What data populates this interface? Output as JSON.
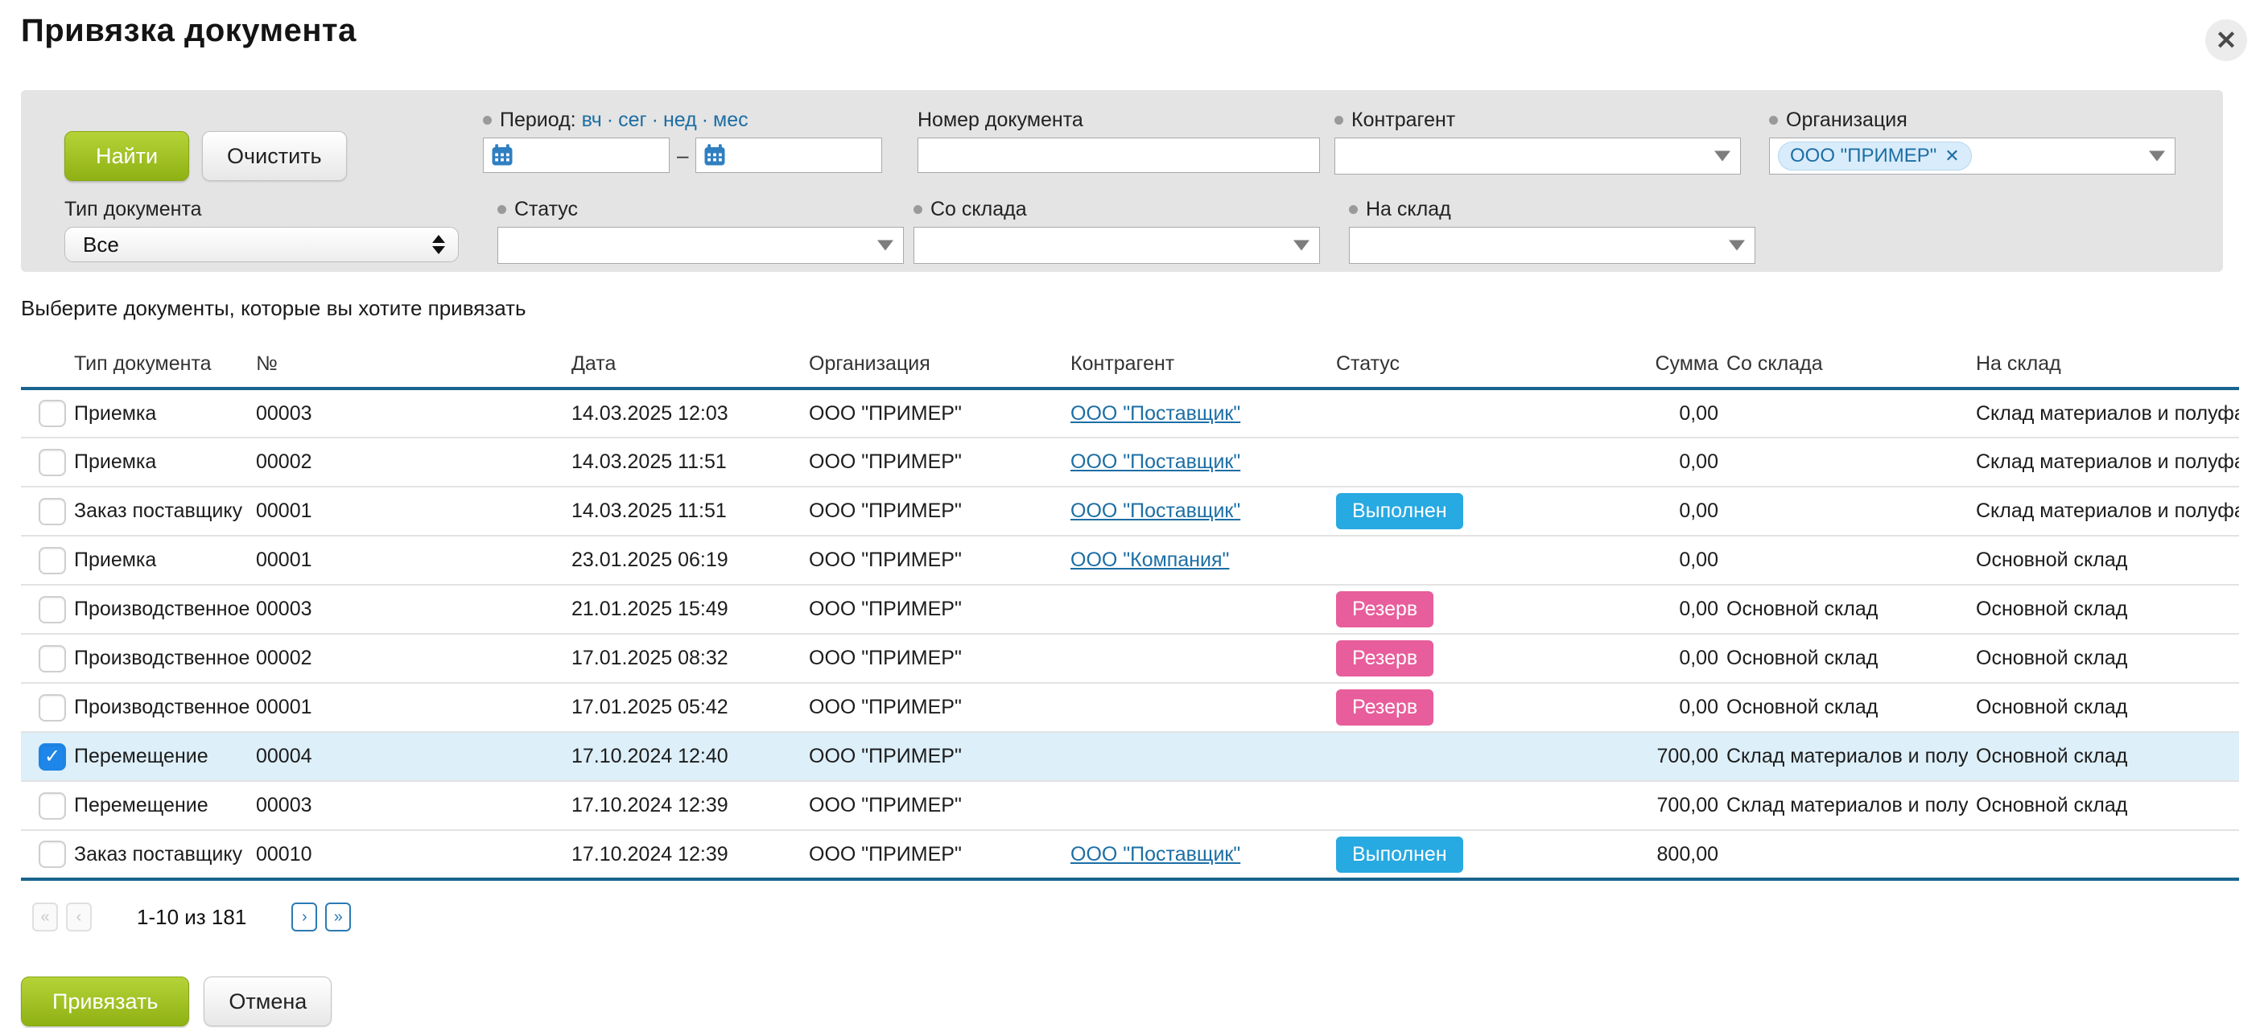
{
  "dialog": {
    "title": "Привязка документа",
    "close_glyph": "✕"
  },
  "filters": {
    "search_label": "Найти",
    "clear_label": "Очистить",
    "period": {
      "label": "Период:",
      "shortcuts": [
        "вч",
        "сег",
        "нед",
        "мес"
      ],
      "separator": "·",
      "range_dash": "–",
      "from_value": "",
      "to_value": ""
    },
    "doc_number": {
      "label": "Номер документа",
      "value": ""
    },
    "contractor": {
      "label": "Контрагент",
      "value": ""
    },
    "organization": {
      "label": "Организация",
      "tag": "ООО \"ПРИМЕР\"",
      "tag_remove_glyph": "✕"
    },
    "doc_type": {
      "label": "Тип документа",
      "value": "Все"
    },
    "status": {
      "label": "Статус",
      "value": ""
    },
    "from_warehouse": {
      "label": "Со склада",
      "value": ""
    },
    "to_warehouse": {
      "label": "На склад",
      "value": ""
    }
  },
  "table": {
    "caption": "Выберите документы, которые вы хотите привязать",
    "columns": [
      "Тип документа",
      "№",
      "Дата",
      "Организация",
      "Контрагент",
      "Статус",
      "Сумма",
      "Со склада",
      "На склад"
    ],
    "rows": [
      {
        "checked": false,
        "selected": false,
        "type": "Приемка",
        "num": "00003",
        "date": "14.03.2025 12:03",
        "org": "ООО \"ПРИМЕР\"",
        "contractor": "ООО \"Поставщик\"",
        "status": "",
        "status_type": "",
        "sum": "0,00",
        "from_wh": "",
        "to_wh": "Склад материалов и полуфаб"
      },
      {
        "checked": false,
        "selected": false,
        "type": "Приемка",
        "num": "00002",
        "date": "14.03.2025 11:51",
        "org": "ООО \"ПРИМЕР\"",
        "contractor": "ООО \"Поставщик\"",
        "status": "",
        "status_type": "",
        "sum": "0,00",
        "from_wh": "",
        "to_wh": "Склад материалов и полуфаб"
      },
      {
        "checked": false,
        "selected": false,
        "type": "Заказ поставщику",
        "num": "00001",
        "date": "14.03.2025 11:51",
        "org": "ООО \"ПРИМЕР\"",
        "contractor": "ООО \"Поставщик\"",
        "status": "Выполнен",
        "status_type": "done",
        "sum": "0,00",
        "from_wh": "",
        "to_wh": "Склад материалов и полуфаб"
      },
      {
        "checked": false,
        "selected": false,
        "type": "Приемка",
        "num": "00001",
        "date": "23.01.2025 06:19",
        "org": "ООО \"ПРИМЕР\"",
        "contractor": "ООО \"Компания\"",
        "status": "",
        "status_type": "",
        "sum": "0,00",
        "from_wh": "",
        "to_wh": "Основной склад"
      },
      {
        "checked": false,
        "selected": false,
        "type": "Производственное зад",
        "num": "00003",
        "date": "21.01.2025 15:49",
        "org": "ООО \"ПРИМЕР\"",
        "contractor": "",
        "status": "Резерв",
        "status_type": "reserve",
        "sum": "0,00",
        "from_wh": "Основной склад",
        "to_wh": "Основной склад"
      },
      {
        "checked": false,
        "selected": false,
        "type": "Производственное зад",
        "num": "00002",
        "date": "17.01.2025 08:32",
        "org": "ООО \"ПРИМЕР\"",
        "contractor": "",
        "status": "Резерв",
        "status_type": "reserve",
        "sum": "0,00",
        "from_wh": "Основной склад",
        "to_wh": "Основной склад"
      },
      {
        "checked": false,
        "selected": false,
        "type": "Производственное зад",
        "num": "00001",
        "date": "17.01.2025 05:42",
        "org": "ООО \"ПРИМЕР\"",
        "contractor": "",
        "status": "Резерв",
        "status_type": "reserve",
        "sum": "0,00",
        "from_wh": "Основной склад",
        "to_wh": "Основной склад"
      },
      {
        "checked": true,
        "selected": true,
        "type": "Перемещение",
        "num": "00004",
        "date": "17.10.2024 12:40",
        "org": "ООО \"ПРИМЕР\"",
        "contractor": "",
        "status": "",
        "status_type": "",
        "sum": "700,00",
        "from_wh": "Склад материалов и полуфаб",
        "to_wh": "Основной склад"
      },
      {
        "checked": false,
        "selected": false,
        "type": "Перемещение",
        "num": "00003",
        "date": "17.10.2024 12:39",
        "org": "ООО \"ПРИМЕР\"",
        "contractor": "",
        "status": "",
        "status_type": "",
        "sum": "700,00",
        "from_wh": "Склад материалов и полуфаб",
        "to_wh": "Основной склад"
      },
      {
        "checked": false,
        "selected": false,
        "type": "Заказ поставщику",
        "num": "00010",
        "date": "17.10.2024 12:39",
        "org": "ООО \"ПРИМЕР\"",
        "contractor": "ООО \"Поставщик\"",
        "status": "Выполнен",
        "status_type": "done",
        "sum": "800,00",
        "from_wh": "",
        "to_wh": ""
      }
    ]
  },
  "pagination": {
    "first": "«",
    "prev": "‹",
    "info": "1-10 из 181",
    "next": "›",
    "last": "»"
  },
  "actions": {
    "bind_label": "Привязать",
    "cancel_label": "Отмена"
  },
  "colors": {
    "primary_button": "#9fbf28",
    "badge_done": "#27a9e1",
    "badge_reserve": "#e85d9b",
    "link": "#1c6ea4",
    "header_border": "#19648e",
    "selected_row": "#ddeff9",
    "checkbox_checked": "#1d86e8"
  }
}
